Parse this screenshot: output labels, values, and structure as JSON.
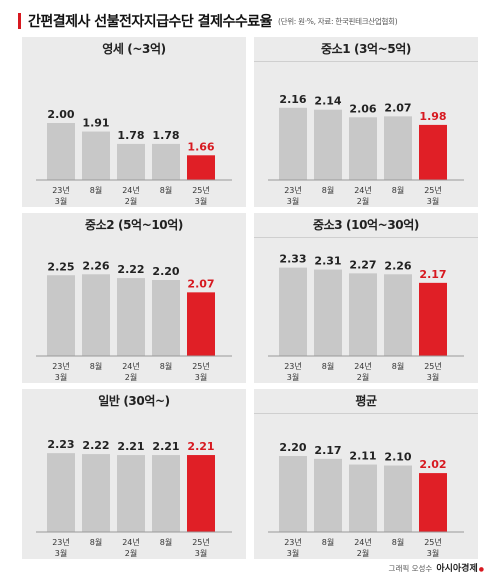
{
  "header": {
    "title": "간편결제사 선불전자지급수단 결제수수료율",
    "note": "(단위: 원·%, 자료: 한국핀테크산업협회)"
  },
  "footer": {
    "credit": "그래픽 오성수",
    "brand": "아시아경제"
  },
  "colors": {
    "bar": "#c8c8c8",
    "highlight": "#e01f26",
    "panel_bg": "#ebebeb",
    "label": "#222222",
    "highlight_label": "#d71920"
  },
  "chart_data": [
    {
      "type": "bar",
      "title": "영세 (~3억)",
      "categories": [
        [
          "23년",
          "3월"
        ],
        [
          "8월"
        ],
        [
          "24년",
          "2월"
        ],
        [
          "8월"
        ],
        [
          "25년",
          "3월"
        ]
      ],
      "values": [
        2.0,
        1.91,
        1.78,
        1.78,
        1.66
      ],
      "labels": [
        "2.00",
        "1.91",
        "1.78",
        "1.78",
        "1.66"
      ],
      "highlight_index": 4
    },
    {
      "type": "bar",
      "title": "중소1 (3억~5억)",
      "categories": [
        [
          "23년",
          "3월"
        ],
        [
          "8월"
        ],
        [
          "24년",
          "2월"
        ],
        [
          "8월"
        ],
        [
          "25년",
          "3월"
        ]
      ],
      "values": [
        2.16,
        2.14,
        2.06,
        2.07,
        1.98
      ],
      "labels": [
        "2.16",
        "2.14",
        "2.06",
        "2.07",
        "1.98"
      ],
      "highlight_index": 4
    },
    {
      "type": "bar",
      "title": "중소2 (5억~10억)",
      "categories": [
        [
          "23년",
          "3월"
        ],
        [
          "8월"
        ],
        [
          "24년",
          "2월"
        ],
        [
          "8월"
        ],
        [
          "25년",
          "3월"
        ]
      ],
      "values": [
        2.25,
        2.26,
        2.22,
        2.2,
        2.07
      ],
      "labels": [
        "2.25",
        "2.26",
        "2.22",
        "2.20",
        "2.07"
      ],
      "highlight_index": 4
    },
    {
      "type": "bar",
      "title": "중소3 (10억~30억)",
      "categories": [
        [
          "23년",
          "3월"
        ],
        [
          "8월"
        ],
        [
          "24년",
          "2월"
        ],
        [
          "8월"
        ],
        [
          "25년",
          "3월"
        ]
      ],
      "values": [
        2.33,
        2.31,
        2.27,
        2.26,
        2.17
      ],
      "labels": [
        "2.33",
        "2.31",
        "2.27",
        "2.26",
        "2.17"
      ],
      "highlight_index": 4
    },
    {
      "type": "bar",
      "title": "일반 (30억~)",
      "categories": [
        [
          "23년",
          "3월"
        ],
        [
          "8월"
        ],
        [
          "24년",
          "2월"
        ],
        [
          "8월"
        ],
        [
          "25년",
          "3월"
        ]
      ],
      "values": [
        2.23,
        2.22,
        2.21,
        2.21,
        2.21
      ],
      "labels": [
        "2.23",
        "2.22",
        "2.21",
        "2.21",
        "2.21"
      ],
      "highlight_index": 4
    },
    {
      "type": "bar",
      "title": "평균",
      "categories": [
        [
          "23년",
          "3월"
        ],
        [
          "8월"
        ],
        [
          "24년",
          "2월"
        ],
        [
          "8월"
        ],
        [
          "25년",
          "3월"
        ]
      ],
      "values": [
        2.2,
        2.17,
        2.11,
        2.1,
        2.02
      ],
      "labels": [
        "2.20",
        "2.17",
        "2.11",
        "2.10",
        "2.02"
      ],
      "highlight_index": 4
    }
  ]
}
